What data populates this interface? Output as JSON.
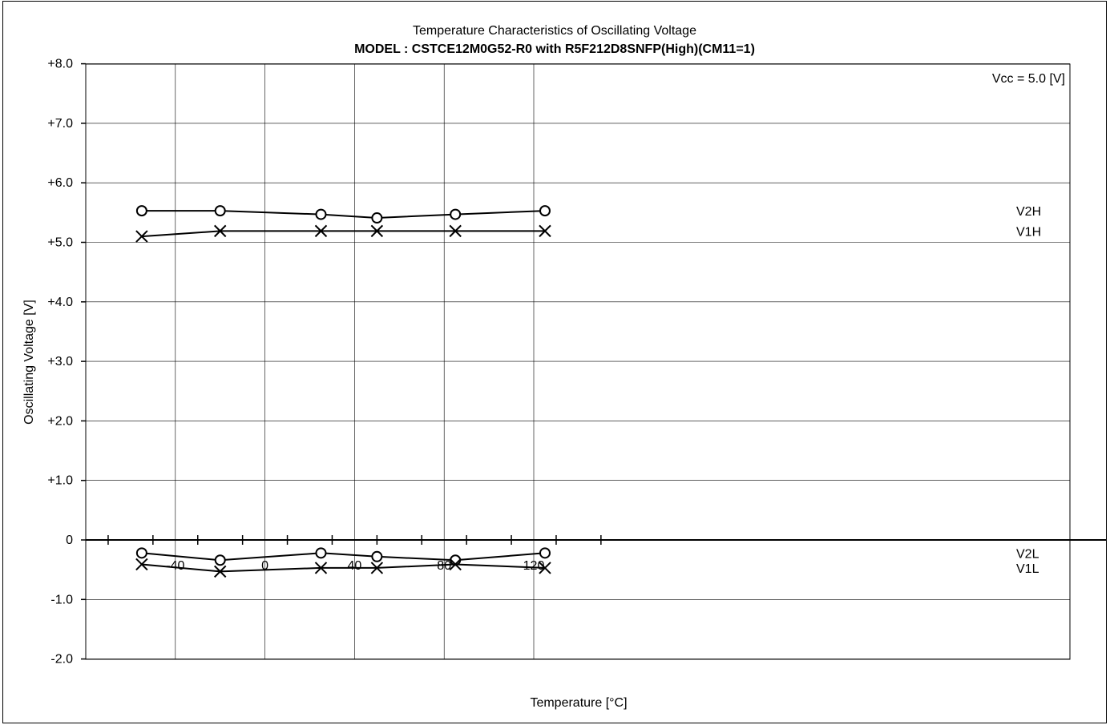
{
  "chart_data": {
    "type": "line",
    "title": "Temperature Characteristics of Oscillating Voltage",
    "subtitle": "MODEL : CSTCE12M0G52-R0 with R5F212D8SNFP(High)(CM11=1)",
    "annotation": "Vcc = 5.0 [V]",
    "xlabel": "Temperature [°C]",
    "ylabel": "Oscillating Voltage [V]",
    "xlim": [
      -80,
      140
    ],
    "ylim": [
      -2,
      8
    ],
    "grid": true,
    "x_tick_labels": [
      "-40",
      "0",
      "40",
      "80",
      "120"
    ],
    "y_tick_labels": [
      "+8.0",
      "+7.0",
      "+6.0",
      "+5.0",
      "+4.0",
      "+3.0",
      "+2.0",
      "+1.0",
      "0",
      "-1.0",
      "-2.0"
    ],
    "x": [
      -55,
      -20,
      25,
      50,
      85,
      125
    ],
    "series": [
      {
        "name": "V2H",
        "marker": "circle",
        "values": [
          5.53,
          5.53,
          5.47,
          5.41,
          5.47,
          5.53
        ]
      },
      {
        "name": "V1H",
        "marker": "cross",
        "values": [
          5.1,
          5.19,
          5.19,
          5.19,
          5.19,
          5.19
        ]
      },
      {
        "name": "V2L",
        "marker": "circle",
        "values": [
          -0.22,
          -0.34,
          -0.22,
          -0.28,
          -0.34,
          -0.22
        ]
      },
      {
        "name": "V1L",
        "marker": "cross",
        "values": [
          -0.41,
          -0.53,
          -0.47,
          -0.47,
          -0.41,
          -0.47
        ]
      }
    ]
  }
}
